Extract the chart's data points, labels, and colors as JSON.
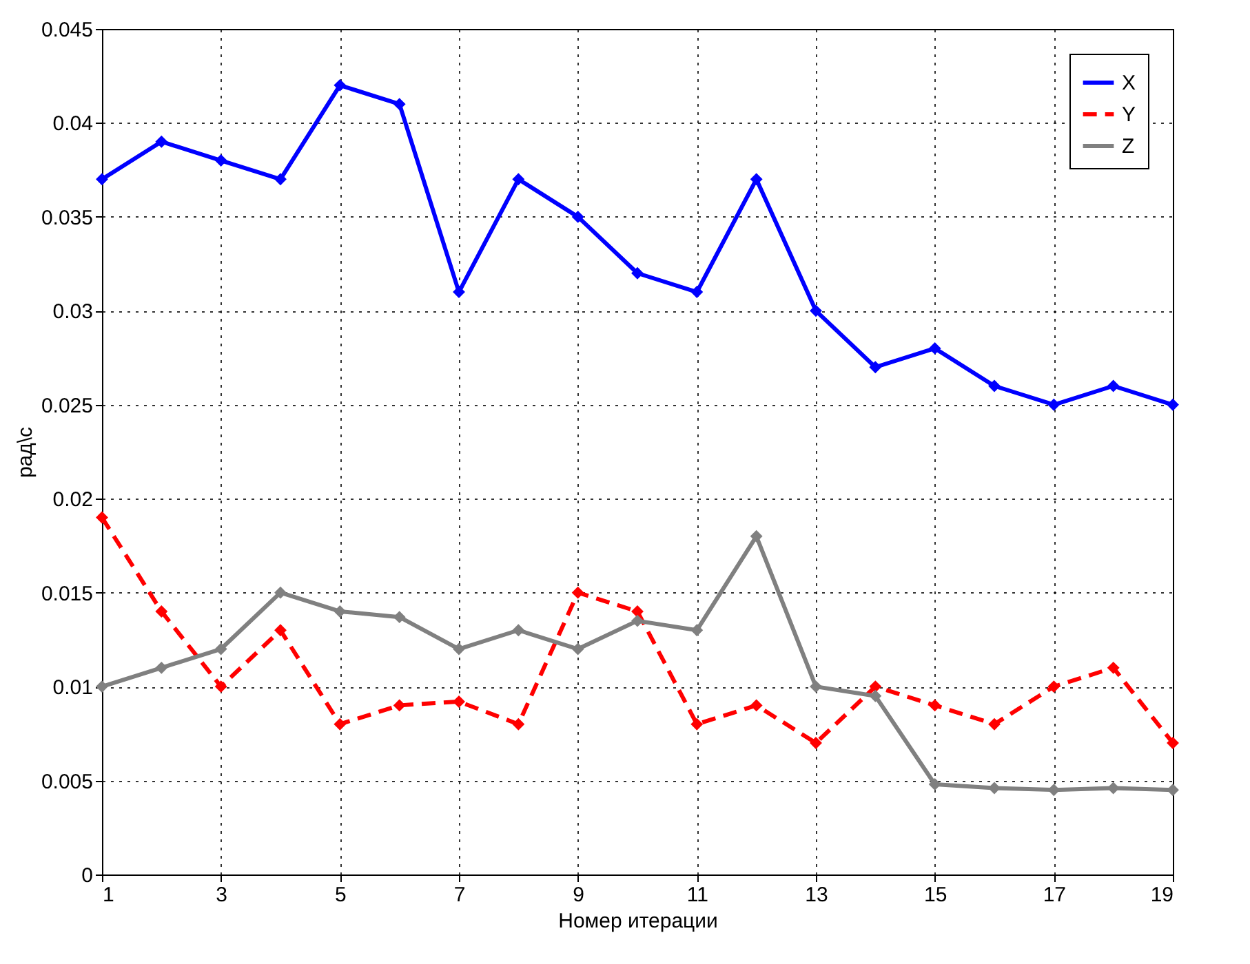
{
  "chart_data": {
    "type": "line",
    "xlabel": "Номер итерации",
    "ylabel": "рад\\с",
    "x": [
      1,
      2,
      3,
      4,
      5,
      6,
      7,
      8,
      9,
      10,
      11,
      12,
      13,
      14,
      15,
      16,
      17,
      18,
      19
    ],
    "series": [
      {
        "name": "X",
        "color": "#0000ff",
        "line_style": "solid",
        "values": [
          0.037,
          0.039,
          0.038,
          0.037,
          0.042,
          0.041,
          0.031,
          0.037,
          0.035,
          0.032,
          0.031,
          0.037,
          0.03,
          0.027,
          0.028,
          0.026,
          0.025,
          0.026,
          0.025
        ]
      },
      {
        "name": "Y",
        "color": "#ff0000",
        "line_style": "dashed",
        "values": [
          0.019,
          0.014,
          0.01,
          0.013,
          0.008,
          0.009,
          0.0092,
          0.008,
          0.015,
          0.014,
          0.008,
          0.009,
          0.007,
          0.01,
          0.009,
          0.008,
          0.01,
          0.011,
          0.007
        ]
      },
      {
        "name": "Z",
        "color": "#808080",
        "line_style": "solid",
        "values": [
          0.01,
          0.011,
          0.012,
          0.015,
          0.014,
          0.0137,
          0.012,
          0.013,
          0.012,
          0.0135,
          0.013,
          0.018,
          0.01,
          0.0095,
          0.0048,
          0.0046,
          0.0045,
          0.0046,
          0.0045
        ]
      }
    ],
    "xlim": [
      1,
      19
    ],
    "xticks": [
      1,
      3,
      5,
      7,
      9,
      11,
      13,
      15,
      17,
      19
    ],
    "ylim": [
      0,
      0.045
    ],
    "yticks": [
      0,
      0.005,
      0.01,
      0.015,
      0.02,
      0.025,
      0.03,
      0.035,
      0.04,
      0.045
    ],
    "grid": true,
    "legend": "top right",
    "marker": "diamond"
  }
}
